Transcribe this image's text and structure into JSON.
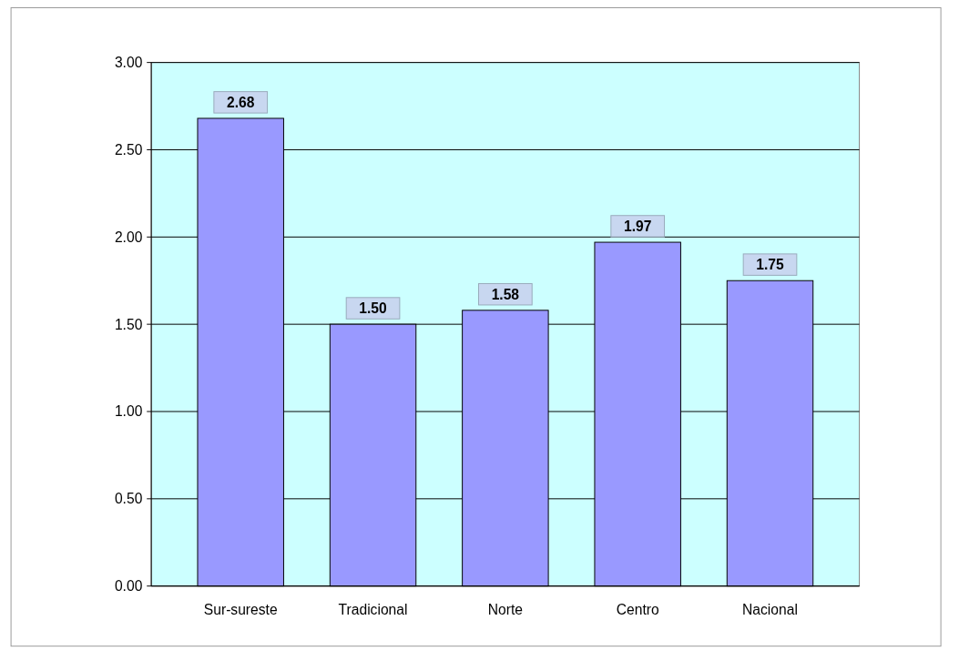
{
  "chart_data": {
    "type": "bar",
    "categories": [
      "Sur-sureste",
      "Tradicional",
      "Norte",
      "Centro",
      "Nacional"
    ],
    "values": [
      2.68,
      1.5,
      1.58,
      1.97,
      1.75
    ],
    "color": "#9999ff",
    "ylim": [
      0,
      3
    ],
    "yticks": [
      {
        "value": 0,
        "label": "0.00"
      },
      {
        "value": 0.5,
        "label": "0.50"
      },
      {
        "value": 1,
        "label": "1.00"
      },
      {
        "value": 1.5,
        "label": "1.50"
      },
      {
        "value": 2,
        "label": "2.00"
      },
      {
        "value": 2.5,
        "label": "2.50"
      },
      {
        "value": 3,
        "label": "3.00"
      }
    ],
    "value_labels": [
      "2.68",
      "1.50",
      "1.58",
      "1.97",
      "1.75"
    ],
    "grid": "y"
  }
}
